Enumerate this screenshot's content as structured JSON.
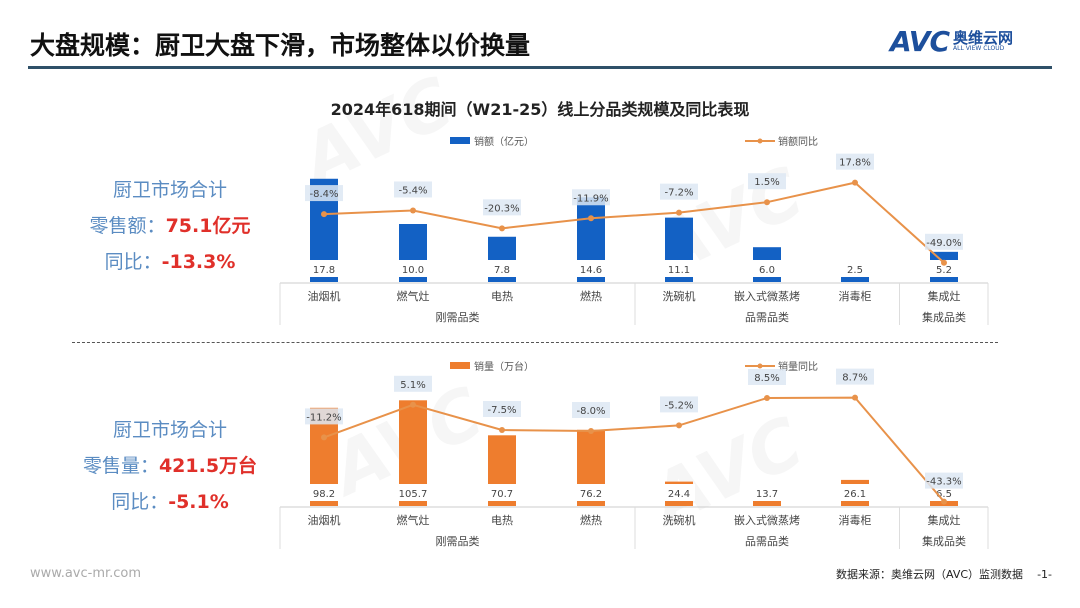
{
  "header": {
    "title": "大盘规模：厨卫大盘下滑，市场整体以价换量",
    "logo_text": "AVC",
    "logo_cn": "奥维云网",
    "logo_en": "ALL VIEW CLOUD"
  },
  "chart_title": "2024年618期间（W21-25）线上分品类规模及同比表现",
  "panel_top": {
    "label": "厨卫市场合计",
    "metric": "零售额：",
    "metric_value": "75.1亿元",
    "yoy_label": "同比：",
    "yoy_value": "-13.3%"
  },
  "panel_bottom": {
    "label": "厨卫市场合计",
    "metric": "零售量：",
    "metric_value": "421.5万台",
    "yoy_label": "同比：",
    "yoy_value": "-5.1%"
  },
  "footer": {
    "website": "www.avc-mr.com",
    "source": "数据来源：奥维云网（AVC）监测数据",
    "page": "-1-"
  },
  "colors": {
    "blue": "#1361c4",
    "orange": "#ee7d2e",
    "line": "#e8924a",
    "label_bg": "#dde7f3"
  },
  "chart_data": [
    {
      "type": "bar+line",
      "categories": [
        "油烟机",
        "燃气灶",
        "电热",
        "燃热",
        "洗碗机",
        "嵌入式微蒸烤",
        "消毒柜",
        "集成灶"
      ],
      "groups": [
        {
          "name": "刚需品类",
          "count": 4
        },
        {
          "name": "品需品类",
          "count": 3
        },
        {
          "name": "集成品类",
          "count": 1
        }
      ],
      "series": [
        {
          "name": "销额（亿元）",
          "type": "bar",
          "values": [
            17.8,
            10.0,
            7.8,
            14.6,
            11.1,
            6.0,
            2.5,
            5.2
          ],
          "labels": [
            "17.8",
            "10.0",
            "7.8",
            "14.6",
            "11.1",
            "6.0",
            "2.5",
            "5.2"
          ]
        },
        {
          "name": "销额同比",
          "type": "line",
          "values": [
            -8.4,
            -5.4,
            -20.3,
            -11.9,
            -7.2,
            1.5,
            17.8,
            -49.0
          ],
          "labels": [
            "-8.4%",
            "-5.4%",
            "-20.3%",
            "-11.9%",
            "-7.2%",
            "1.5%",
            "17.8%",
            "-49.0%"
          ]
        }
      ]
    },
    {
      "type": "bar+line",
      "categories": [
        "油烟机",
        "燃气灶",
        "电热",
        "燃热",
        "洗碗机",
        "嵌入式微蒸烤",
        "消毒柜",
        "集成灶"
      ],
      "groups": [
        {
          "name": "刚需品类",
          "count": 4
        },
        {
          "name": "品需品类",
          "count": 3
        },
        {
          "name": "集成品类",
          "count": 1
        }
      ],
      "series": [
        {
          "name": "销量（万台）",
          "type": "bar",
          "values": [
            98.2,
            105.7,
            70.7,
            76.2,
            24.4,
            13.7,
            26.1,
            6.5
          ],
          "labels": [
            "98.2",
            "105.7",
            "70.7",
            "76.2",
            "24.4",
            "13.7",
            "26.1",
            "6.5"
          ]
        },
        {
          "name": "销量同比",
          "type": "line",
          "values": [
            -11.2,
            5.1,
            -7.5,
            -8.0,
            -5.2,
            8.5,
            8.7,
            -43.3
          ],
          "labels": [
            "-11.2%",
            "5.1%",
            "-7.5%",
            "-8.0%",
            "-5.2%",
            "8.5%",
            "8.7%",
            "-43.3%"
          ]
        }
      ]
    }
  ]
}
